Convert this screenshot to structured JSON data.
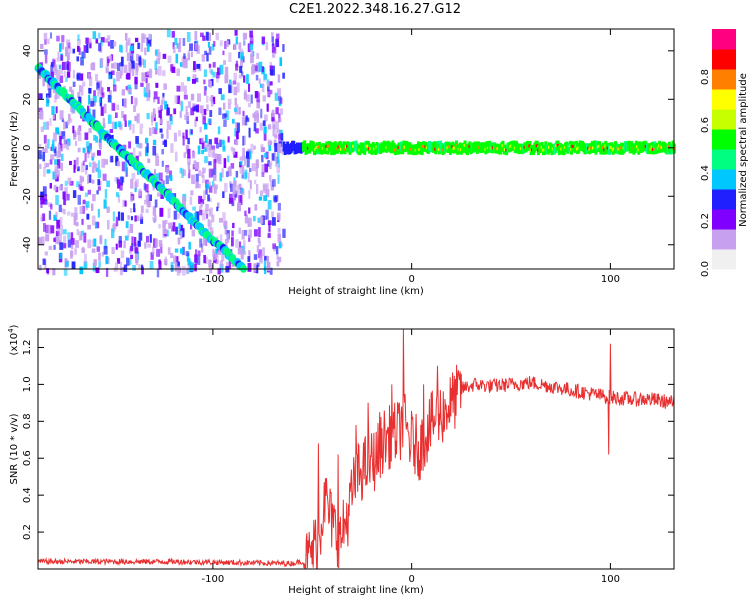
{
  "title": "C2E1.2022.348.16.27.G12",
  "chart_data": [
    {
      "type": "heatmap",
      "xlabel": "Height of straight line (km)",
      "ylabel": "Frequency (Hz)",
      "xlim": [
        -188,
        132
      ],
      "ylim": [
        -50,
        49
      ],
      "x_ticks": [
        -100,
        0,
        100
      ],
      "x_tick_labels": [
        "-100",
        "0",
        "100"
      ],
      "y_ticks": [
        -40,
        -20,
        0,
        20,
        40
      ],
      "y_tick_labels": [
        "-40",
        "-20",
        "0",
        "20",
        "40"
      ],
      "diagonal_echo": [
        [
          -188,
          33
        ],
        [
          -168,
          17
        ],
        [
          -148,
          0
        ],
        [
          -128,
          -15
        ],
        [
          -108,
          -32
        ],
        [
          -84,
          -50
        ]
      ],
      "noise_region_x": [
        -188,
        -65
      ],
      "horizontal_echo_y": 0,
      "horizontal_echo_x": [
        -65,
        132
      ],
      "colorbar": {
        "label": "Normalized spectral amplitude",
        "range": [
          0,
          1
        ],
        "ticks": [
          0.0,
          0.2,
          0.4,
          0.6,
          0.8
        ],
        "tick_labels": [
          "0.0",
          "0.2",
          "0.4",
          "0.6",
          "0.8"
        ],
        "colors": [
          "#f0f0f0",
          "#c8a0f0",
          "#8000ff",
          "#2020ff",
          "#00c8ff",
          "#00ff80",
          "#00ff00",
          "#c8ff00",
          "#ffff00",
          "#ff8000",
          "#ff0000",
          "#ff0080"
        ]
      }
    },
    {
      "type": "line",
      "xlabel": "Height of straight line (km)",
      "ylabel": "SNR (10 * v/v)",
      "multiplier_label": "(x10",
      "multiplier_exp": "4",
      "xlim": [
        -188,
        132
      ],
      "ylim": [
        0,
        1.3
      ],
      "x_ticks": [
        -100,
        0,
        100
      ],
      "x_tick_labels": [
        "-100",
        "0",
        "100"
      ],
      "y_ticks": [
        0.2,
        0.4,
        0.6,
        0.8,
        1.0,
        1.2
      ],
      "y_tick_labels": [
        "0.2",
        "0.4",
        "0.6",
        "0.8",
        "1.0",
        "1.2"
      ],
      "series_color": "#e83030",
      "envelope": [
        [
          -188,
          0.04
        ],
        [
          -120,
          0.04
        ],
        [
          -60,
          0.03
        ],
        [
          -52,
          0.05
        ],
        [
          -46,
          0.2
        ],
        [
          -44,
          0.4
        ],
        [
          -40,
          0.25
        ],
        [
          -36,
          0.15
        ],
        [
          -32,
          0.3
        ],
        [
          -28,
          0.5
        ],
        [
          -24,
          0.55
        ],
        [
          -18,
          0.6
        ],
        [
          -14,
          0.7
        ],
        [
          -10,
          0.72
        ],
        [
          -6,
          0.75
        ],
        [
          -4,
          0.8
        ],
        [
          -1,
          0.7
        ],
        [
          4,
          0.65
        ],
        [
          8,
          0.75
        ],
        [
          12,
          0.82
        ],
        [
          16,
          0.85
        ],
        [
          20,
          0.9
        ],
        [
          26,
          0.98
        ],
        [
          32,
          1.0
        ],
        [
          40,
          0.99
        ],
        [
          50,
          1.0
        ],
        [
          60,
          1.01
        ],
        [
          70,
          0.99
        ],
        [
          80,
          0.97
        ],
        [
          90,
          0.95
        ],
        [
          100,
          0.93
        ],
        [
          110,
          0.92
        ],
        [
          120,
          0.92
        ],
        [
          132,
          0.9
        ]
      ],
      "spikes": [
        [
          -47,
          0.68
        ],
        [
          -44,
          0.47
        ],
        [
          -37,
          0.62
        ],
        [
          -28,
          0.78
        ],
        [
          -22,
          0.9
        ],
        [
          -16,
          0.85
        ],
        [
          -10,
          1.0
        ],
        [
          -5,
          0.88
        ],
        [
          -4,
          1.3
        ],
        [
          6,
          1.0
        ],
        [
          13,
          1.1
        ],
        [
          100,
          1.22
        ],
        [
          99,
          0.62
        ]
      ]
    }
  ]
}
